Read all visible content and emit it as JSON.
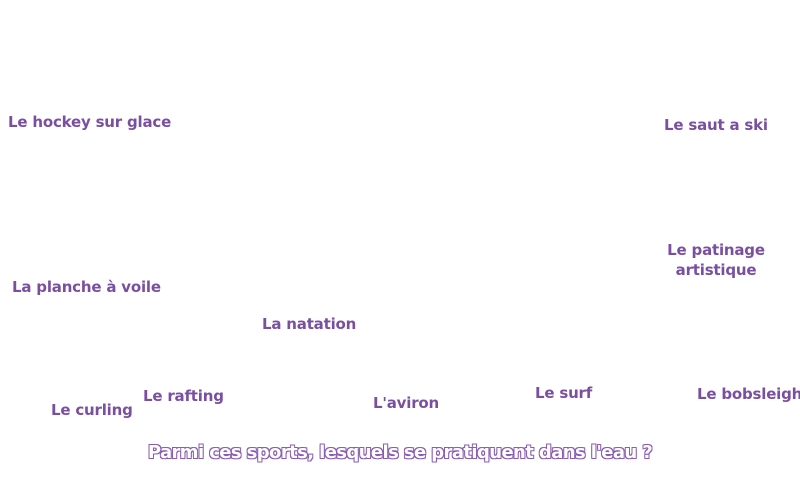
{
  "game": {
    "question": "Parmi ces sports, lesquels se pratiquent dans l'eau ?",
    "text_color": "#7a4fa0",
    "question_outline_color": "#8a5db3",
    "choices": [
      {
        "id": "hockey",
        "label": "Le hockey sur glace"
      },
      {
        "id": "saut-ski",
        "label": "Le saut a ski"
      },
      {
        "id": "patinage",
        "label": "Le patinage artistique"
      },
      {
        "id": "planche-voile",
        "label": "La planche à voile"
      },
      {
        "id": "natation",
        "label": "La natation"
      },
      {
        "id": "rafting",
        "label": "Le rafting"
      },
      {
        "id": "curling",
        "label": "Le curling"
      },
      {
        "id": "aviron",
        "label": "L'aviron"
      },
      {
        "id": "surf",
        "label": "Le surf"
      },
      {
        "id": "bobsleigh",
        "label": "Le bobsleigh"
      }
    ]
  }
}
